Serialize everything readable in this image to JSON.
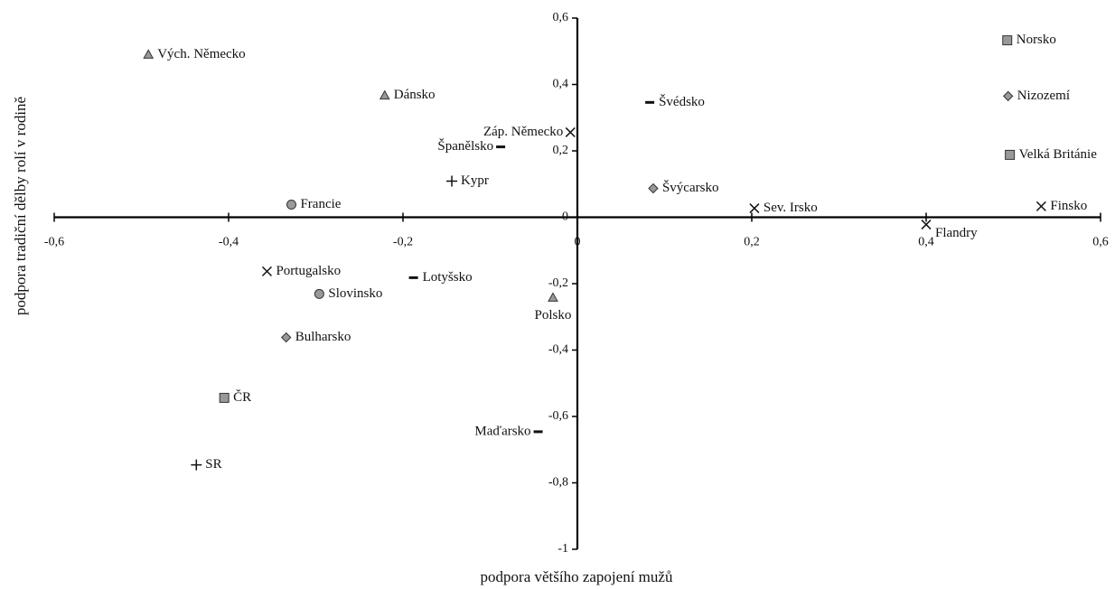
{
  "chart_data": {
    "type": "scatter",
    "x_label": "podpora většího zapojení mužů",
    "y_label": "podpora tradiční dělby rolí v rodině",
    "xlim": [
      -0.6,
      0.6
    ],
    "ylim": [
      -1,
      0.6
    ],
    "xticks": [
      {
        "value": -0.6,
        "label": "-0,6"
      },
      {
        "value": -0.4,
        "label": "-0,4"
      },
      {
        "value": -0.2,
        "label": "-0,2"
      },
      0,
      {
        "value": 0.2,
        "label": "0,2"
      },
      {
        "value": 0.4,
        "label": "0,4"
      },
      {
        "value": 0.6,
        "label": "0,6"
      }
    ],
    "yticks": [
      {
        "value": 0.6,
        "label": "0,6"
      },
      {
        "value": 0.4,
        "label": "0,4"
      },
      {
        "value": 0.2,
        "label": "0,2"
      },
      0,
      {
        "value": -0.2,
        "label": "-0,2"
      },
      {
        "value": -0.4,
        "label": "-0,4"
      },
      {
        "value": -0.6,
        "label": "-0,6"
      },
      {
        "value": -0.8,
        "label": "-0,8"
      },
      -1
    ],
    "series": [
      {
        "marker": "triangle",
        "color": "#999999",
        "x": [
          -0.492,
          -0.221,
          -0.028
        ],
        "y": [
          0.49,
          0.367,
          -0.242
        ],
        "labels": [
          "Vých. Německo",
          "Dánsko",
          "Polsko"
        ]
      },
      {
        "marker": "square",
        "color": "#999999",
        "x": [
          0.493,
          0.496,
          -0.405
        ],
        "y": [
          0.533,
          0.188,
          -0.544
        ],
        "labels": [
          "Norsko",
          "Velká Británie",
          "ČR"
        ]
      },
      {
        "marker": "diamond",
        "color": "#999999",
        "x": [
          0.494,
          0.087,
          -0.334
        ],
        "y": [
          0.365,
          0.087,
          -0.362
        ],
        "labels": [
          "Nizozemí",
          "Švýcarsko",
          "Bulharsko"
        ]
      },
      {
        "marker": "circle",
        "color": "#999999",
        "x": [
          -0.328,
          -0.296
        ],
        "y": [
          0.038,
          -0.231
        ],
        "labels": [
          "Francie",
          "Slovinsko"
        ]
      },
      {
        "marker": "cross",
        "color": "#111111",
        "x": [
          -0.008,
          0.203,
          0.532,
          0.4,
          -0.356
        ],
        "y": [
          0.256,
          0.027,
          0.033,
          -0.022,
          -0.163
        ],
        "labels": [
          "Záp. Německo",
          "Sev. Irsko",
          "Finsko",
          "Flandry",
          "Portugalsko"
        ]
      },
      {
        "marker": "dash",
        "color": "#111111",
        "x": [
          0.083,
          -0.088,
          -0.188,
          -0.045
        ],
        "y": [
          0.346,
          0.212,
          -0.182,
          -0.646
        ],
        "labels": [
          "Švédsko",
          "Španělsko",
          "Lotyšsko",
          "Maďarsko"
        ]
      },
      {
        "marker": "plus",
        "color": "#111111",
        "x": [
          -0.144,
          -0.437
        ],
        "y": [
          0.109,
          -0.746
        ],
        "labels": [
          "Kypr",
          "SR"
        ]
      }
    ]
  }
}
